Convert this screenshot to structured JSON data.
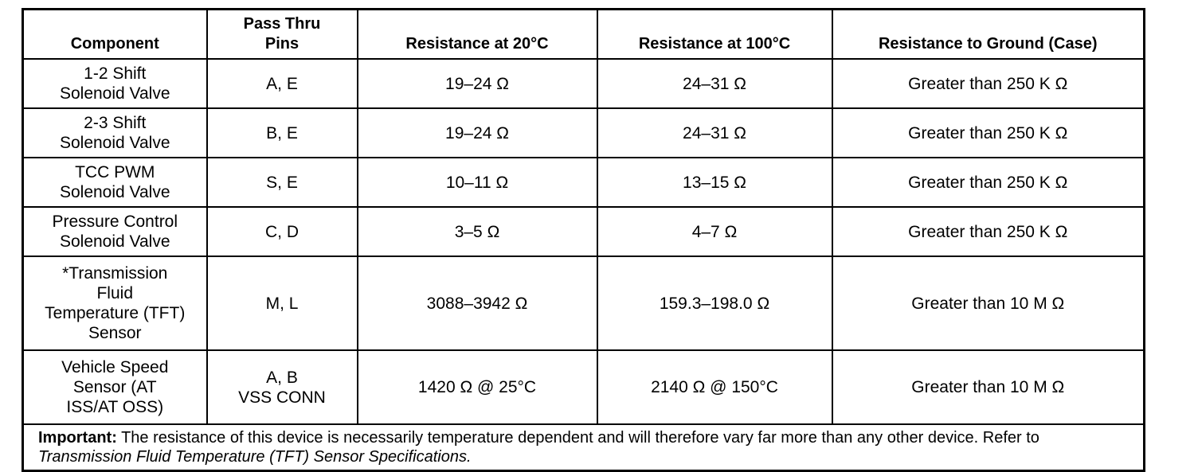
{
  "table": {
    "columns": [
      [
        "Component"
      ],
      [
        "Pass Thru",
        "Pins"
      ],
      [
        "Resistance at 20°C"
      ],
      [
        "Resistance at 100°C"
      ],
      [
        "Resistance to Ground (Case)"
      ]
    ],
    "rows": [
      [
        [
          "1-2 Shift",
          "Solenoid Valve"
        ],
        [
          "A, E"
        ],
        [
          "19–24 Ω"
        ],
        [
          "24–31 Ω"
        ],
        [
          "Greater than 250 K Ω"
        ]
      ],
      [
        [
          "2-3 Shift",
          "Solenoid Valve"
        ],
        [
          "B, E"
        ],
        [
          "19–24 Ω"
        ],
        [
          "24–31 Ω"
        ],
        [
          "Greater than 250 K Ω"
        ]
      ],
      [
        [
          "TCC PWM",
          "Solenoid Valve"
        ],
        [
          "S, E"
        ],
        [
          "10–11 Ω"
        ],
        [
          "13–15 Ω"
        ],
        [
          "Greater than 250 K Ω"
        ]
      ],
      [
        [
          "Pressure Control",
          "Solenoid Valve"
        ],
        [
          "C, D"
        ],
        [
          "3–5 Ω"
        ],
        [
          "4–7 Ω"
        ],
        [
          "Greater than 250 K Ω"
        ]
      ],
      [
        [
          "*Transmission",
          "Fluid",
          "Temperature (TFT)",
          "Sensor"
        ],
        [
          "M, L"
        ],
        [
          "3088–3942 Ω"
        ],
        [
          "159.3–198.0 Ω"
        ],
        [
          "Greater than 10 M Ω"
        ]
      ],
      [
        [
          "Vehicle Speed",
          "Sensor (AT",
          "ISS/AT OSS)"
        ],
        [
          "A, B",
          "VSS CONN"
        ],
        [
          "1420 Ω @ 25°C"
        ],
        [
          "2140 Ω @ 150°C"
        ],
        [
          "Greater than 10 M Ω"
        ]
      ]
    ],
    "note": {
      "label": "Important:",
      "text": "The resistance of this device is necessarily temperature dependent and will therefore vary far more than any other device. Refer to",
      "reference": "Transmission Fluid Temperature (TFT) Sensor Specifications."
    }
  }
}
